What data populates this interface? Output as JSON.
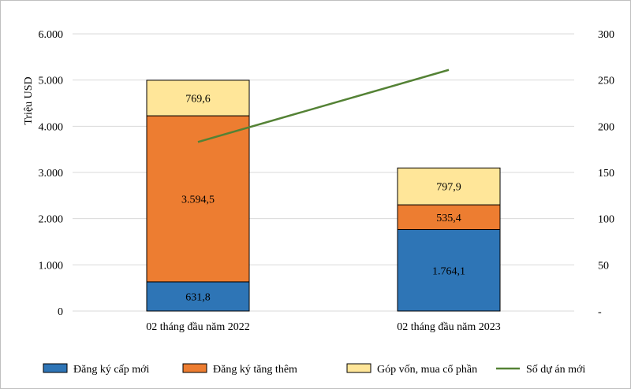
{
  "chart_data": {
    "type": "bar",
    "stacked": true,
    "categories": [
      "02 tháng đầu năm 2022",
      "02 tháng đầu năm 2023"
    ],
    "series": [
      {
        "name": "Đăng ký cấp mới",
        "values": [
          631.8,
          1764.1
        ],
        "labels": [
          "631,8",
          "1.764,1"
        ],
        "color": "#2e75b6",
        "type": "bar",
        "axis": "left"
      },
      {
        "name": "Đăng ký tăng thêm",
        "values": [
          3594.5,
          535.4
        ],
        "labels": [
          "3.594,5",
          "535,4"
        ],
        "color": "#ed7d31",
        "type": "bar",
        "axis": "left"
      },
      {
        "name": "Góp vốn, mua cổ phần",
        "values": [
          769.6,
          797.9
        ],
        "labels": [
          "769,6",
          "797,9"
        ],
        "color": "#ffe699",
        "type": "bar",
        "axis": "left"
      },
      {
        "name": "Số dự án mới",
        "values": [
          183,
          261
        ],
        "color": "#548235",
        "type": "line",
        "axis": "right"
      }
    ],
    "ylabel": "Triệu USD",
    "ylim": [
      0,
      6000
    ],
    "y2lim": [
      0,
      300
    ],
    "yticks": [
      "0",
      "1.000",
      "2.000",
      "3.000",
      "4.000",
      "5.000",
      "6.000"
    ],
    "y2ticks": [
      "-",
      "50",
      "100",
      "150",
      "200",
      "250",
      "300"
    ],
    "grid": true,
    "legend": "bottom"
  }
}
